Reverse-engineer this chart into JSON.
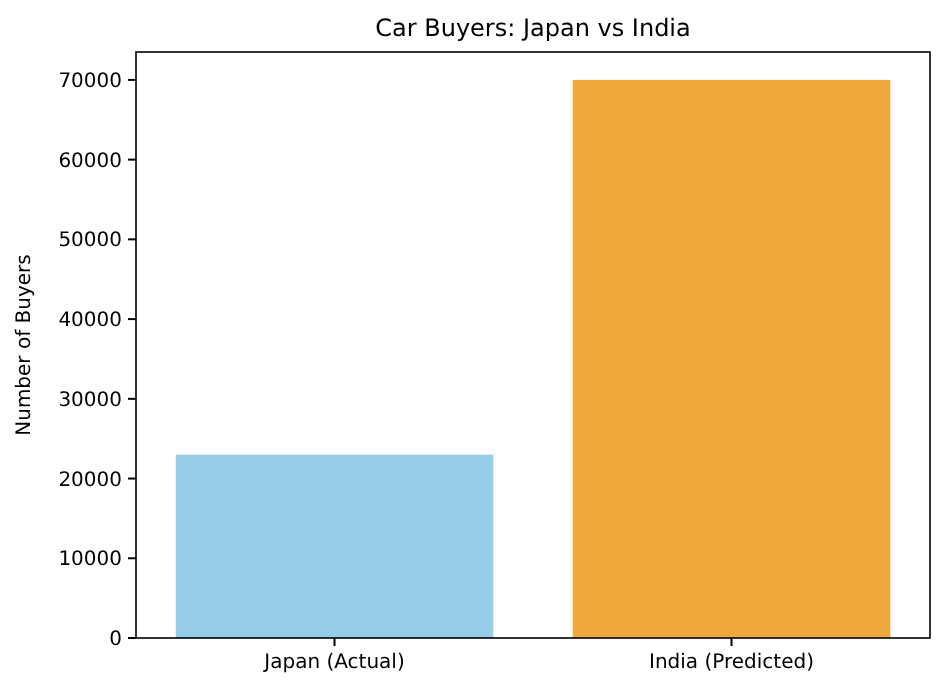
{
  "chart_data": {
    "type": "bar",
    "title": "Car Buyers: Japan vs India",
    "ylabel": "Number of Buyers",
    "categories": [
      "Japan (Actual)",
      "India (Predicted)"
    ],
    "values": [
      23000,
      70000
    ],
    "colors": [
      "#96cde8",
      "#efa83a"
    ],
    "ylim": [
      0,
      73500
    ],
    "yticks": [
      0,
      10000,
      20000,
      30000,
      40000,
      50000,
      60000,
      70000
    ],
    "grid": false
  }
}
